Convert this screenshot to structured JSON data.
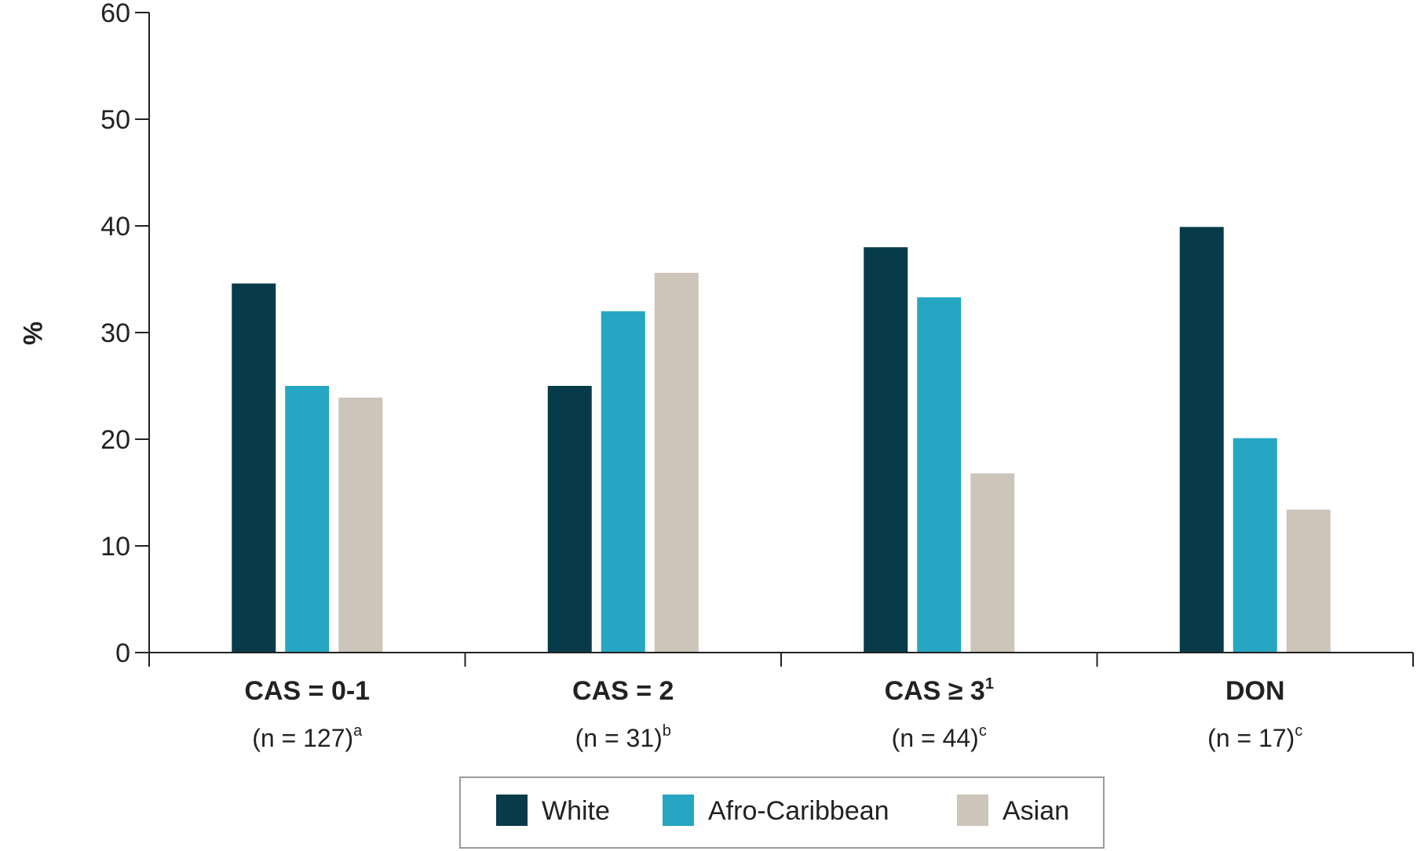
{
  "chart_data": {
    "type": "bar",
    "title": "",
    "xlabel": "",
    "ylabel": "%",
    "ylim": [
      0,
      60
    ],
    "yticks": [
      0,
      10,
      20,
      30,
      40,
      50,
      60
    ],
    "grid": false,
    "legend_position": "bottom-center",
    "categories": [
      {
        "label": "CAS = 0-1",
        "label_sup": "",
        "n_text": "(n = 127)",
        "n_sup": "a"
      },
      {
        "label": "CAS = 2",
        "label_sup": "",
        "n_text": "(n = 31)",
        "n_sup": "b"
      },
      {
        "label": "CAS ≥ 3",
        "label_sup": "1",
        "n_text": "(n = 44)",
        "n_sup": "c"
      },
      {
        "label": "DON",
        "label_sup": "",
        "n_text": "(n = 17)",
        "n_sup": "c"
      }
    ],
    "series": [
      {
        "name": "White",
        "color": "#073b4a",
        "values": [
          34.6,
          25.0,
          38.0,
          39.9
        ]
      },
      {
        "name": "Afro-Caribbean",
        "color": "#26a6c2",
        "values": [
          25.0,
          32.0,
          33.3,
          20.1
        ]
      },
      {
        "name": "Asian",
        "color": "#cdc4ba",
        "values": [
          23.9,
          35.6,
          16.8,
          13.4
        ]
      }
    ]
  }
}
